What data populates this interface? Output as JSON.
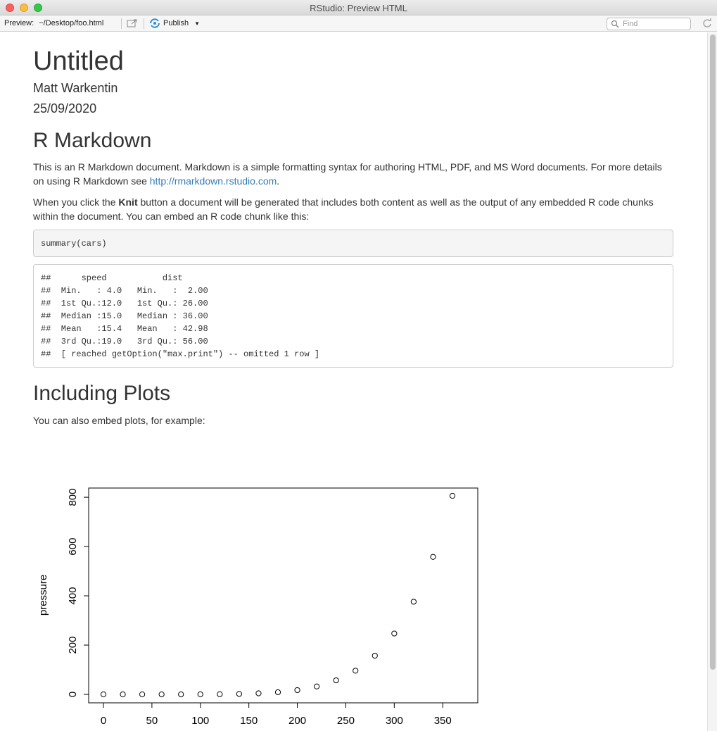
{
  "window": {
    "title": "RStudio: Preview HTML"
  },
  "toolbar": {
    "preview_label": "Preview:",
    "preview_path": "~/Desktop/foo.html",
    "publish_label": "Publish",
    "find_placeholder": "Find"
  },
  "document": {
    "title": "Untitled",
    "author": "Matt Warkentin",
    "date": "25/09/2020",
    "sections": [
      {
        "heading": "R Markdown",
        "p1_before_link": "This is an R Markdown document. Markdown is a simple formatting syntax for authoring HTML, PDF, and MS Word documents. For more details on using R Markdown see ",
        "p1_link": "http://rmarkdown.rstudio.com",
        "p1_after_link": ".",
        "p2_before_bold": "When you click the ",
        "p2_bold": "Knit",
        "p2_after_bold": " button a document will be generated that includes both content as well as the output of any embedded R code chunks within the document. You can embed an R code chunk like this:",
        "code": "summary(cars)",
        "output_lines": [
          "##      speed           dist       ",
          "##  Min.   : 4.0   Min.   :  2.00  ",
          "##  1st Qu.:12.0   1st Qu.: 26.00  ",
          "##  Median :15.0   Median : 36.00  ",
          "##  Mean   :15.4   Mean   : 42.98  ",
          "##  3rd Qu.:19.0   3rd Qu.: 56.00  ",
          "##  [ reached getOption(\"max.print\") -- omitted 1 row ]"
        ]
      },
      {
        "heading": "Including Plots",
        "p1": "You can also embed plots, for example:"
      }
    ]
  },
  "chart_data": {
    "type": "scatter",
    "title": "",
    "xlabel": "",
    "ylabel": "pressure",
    "x": [
      0,
      20,
      40,
      60,
      80,
      100,
      120,
      140,
      160,
      180,
      200,
      220,
      240,
      260,
      280,
      300,
      320,
      340,
      360
    ],
    "y": [
      0.0002,
      0.0012,
      0.006,
      0.03,
      0.09,
      0.27,
      0.75,
      1.85,
      4.2,
      8.8,
      17.3,
      32.1,
      57,
      96,
      157,
      247,
      376,
      558,
      806
    ],
    "x_ticks": [
      "0",
      "50",
      "100",
      "150",
      "200",
      "250",
      "300",
      "350"
    ],
    "y_ticks": [
      "0",
      "200",
      "400",
      "600",
      "800"
    ],
    "xlim": [
      0,
      360
    ],
    "ylim": [
      0,
      806
    ],
    "grid": false,
    "marker": "open-circle"
  }
}
